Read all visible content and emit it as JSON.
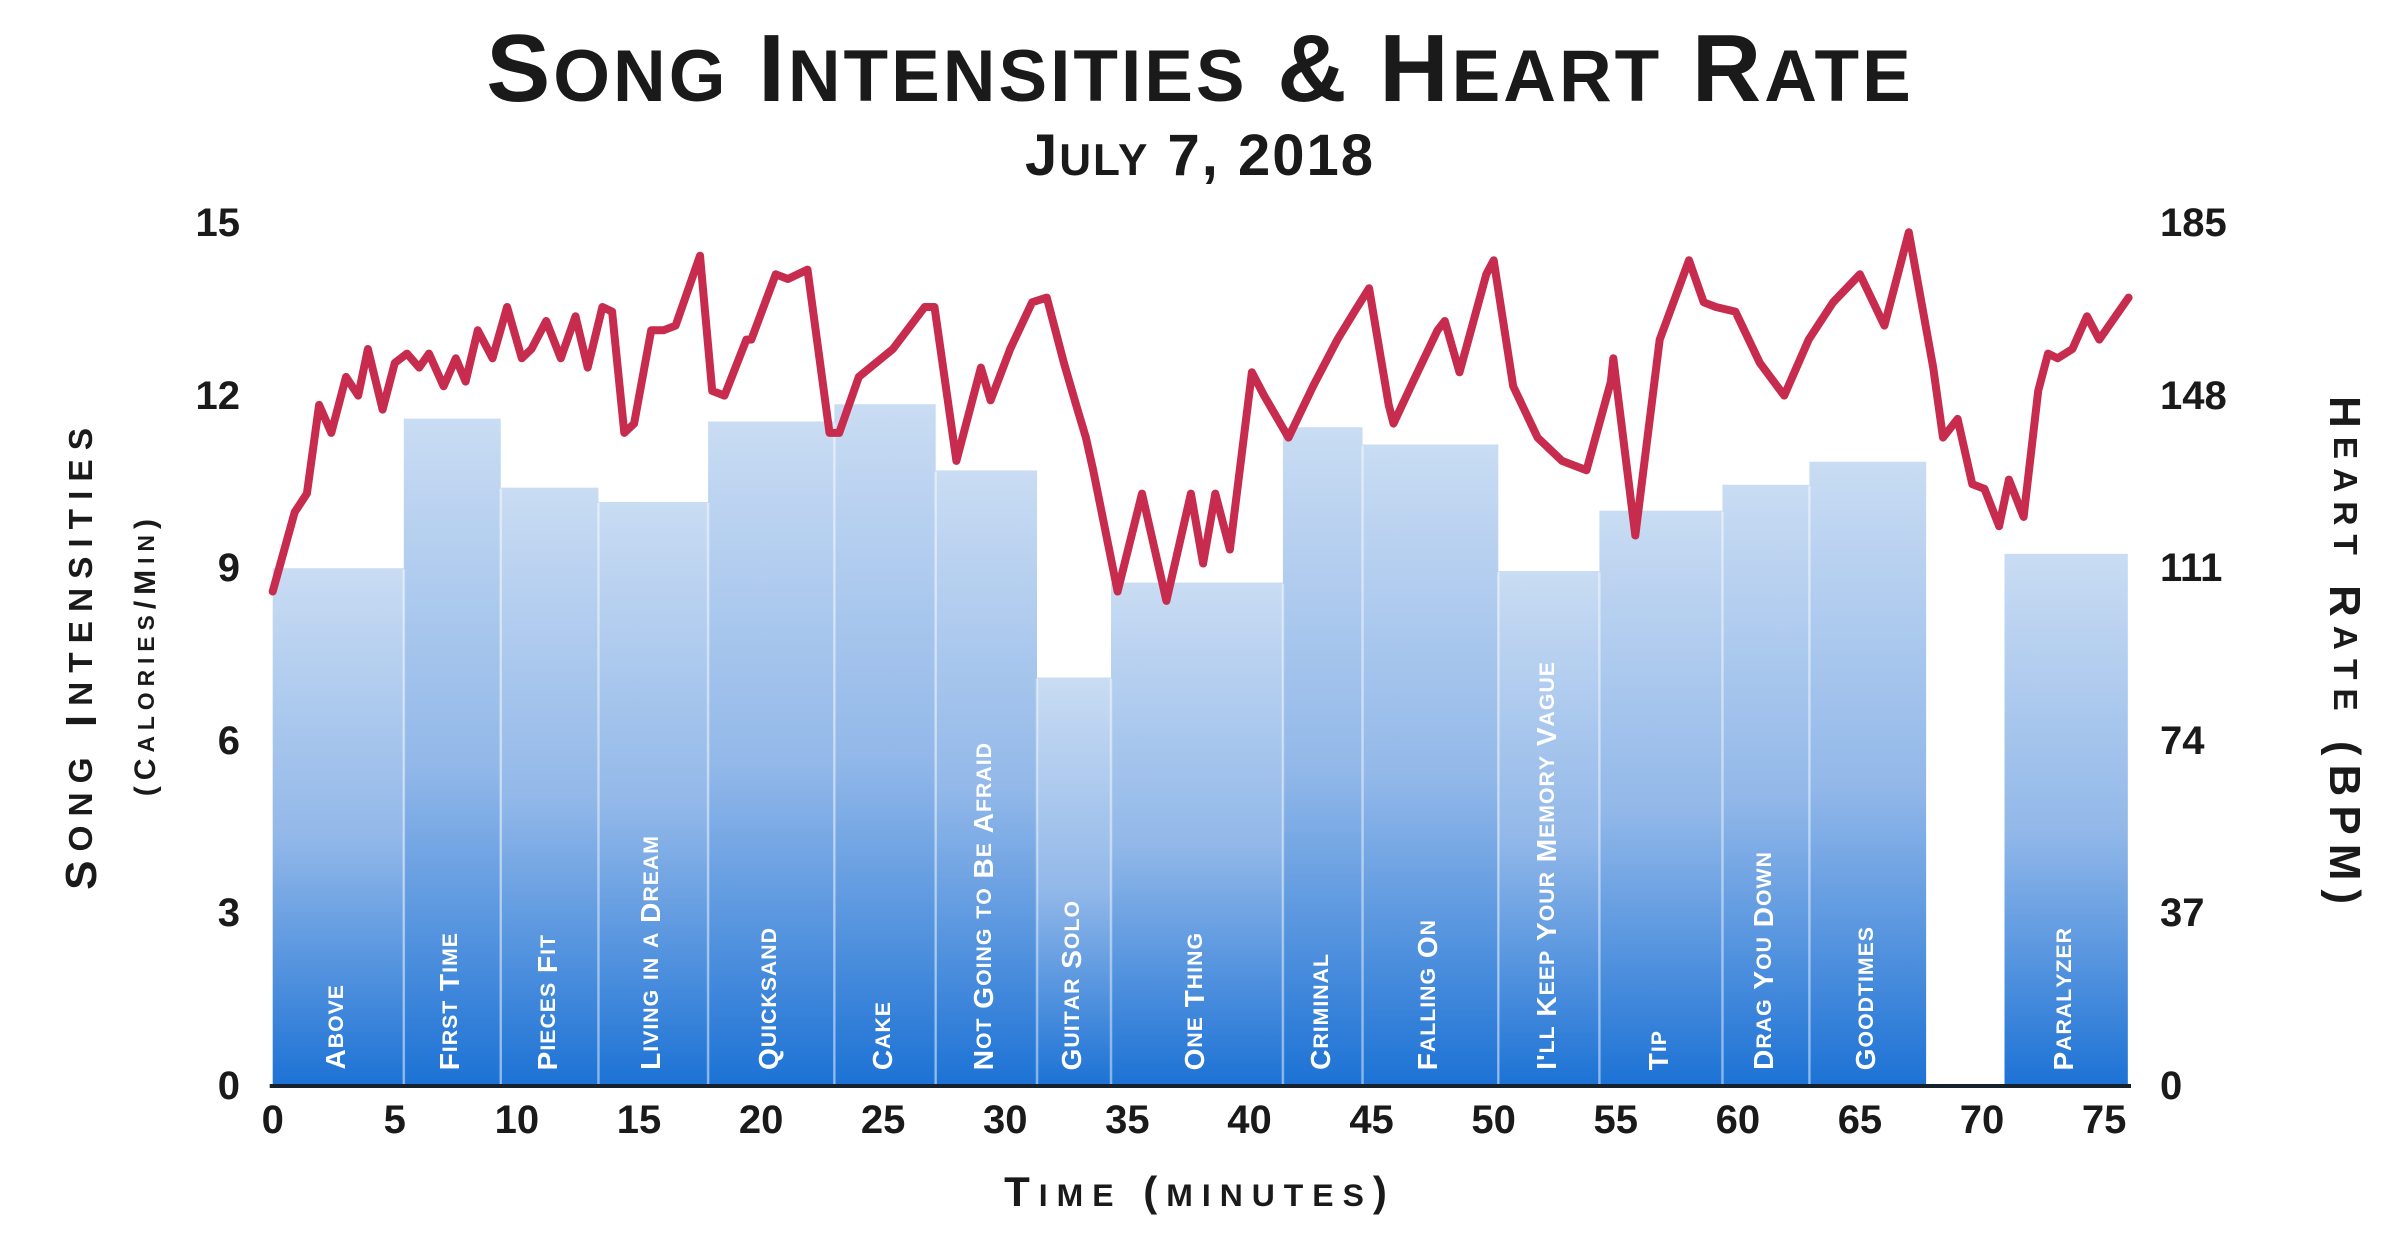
{
  "title": "Song Intensities & Heart Rate",
  "subtitle": "July 7, 2018",
  "colors": {
    "bar_gradient_top": "#C9DCF3",
    "bar_gradient_mid": "#92B8E9",
    "bar_gradient_bottom": "#1C72D5",
    "bar_separator": "rgba(255,255,255,0.45)",
    "heart_line": "#C72C4E",
    "axis_line": "#16212E",
    "text": "#1A1A1A",
    "bar_label_text": "#FFFFFF"
  },
  "chart_data": {
    "type": "combo-bar-line",
    "title": "Song Intensities & Heart Rate",
    "subtitle": "July 7, 2018",
    "grid": false,
    "legend": "none",
    "x": {
      "title": "Time (minutes)",
      "range": [
        0,
        76.1
      ],
      "ticks": [
        0,
        5,
        10,
        15,
        20,
        25,
        30,
        35,
        40,
        45,
        50,
        55,
        60,
        65,
        70,
        75
      ]
    },
    "y_left": {
      "title": "Song Intensities",
      "subtitle": "(Calories/Min)",
      "range": [
        0,
        15
      ],
      "ticks": [
        0,
        3,
        6,
        9,
        12,
        15
      ]
    },
    "y_right": {
      "title": "Heart Rate (BPM)",
      "range": [
        0,
        185
      ],
      "ticks": [
        0,
        37,
        74,
        111,
        148,
        185
      ]
    },
    "bars": {
      "series_name": "Song Intensities",
      "unit": "Calories/Min",
      "items": [
        {
          "label": "Above",
          "start": 0,
          "end": 5.37,
          "value": 9.0
        },
        {
          "label": "First Time",
          "start": 5.37,
          "end": 9.34,
          "value": 11.6
        },
        {
          "label": "Pieces Fit",
          "start": 9.34,
          "end": 13.34,
          "value": 10.4
        },
        {
          "label": "Living in a Dream",
          "start": 13.34,
          "end": 17.83,
          "value": 10.15
        },
        {
          "label": "Quicksand",
          "start": 17.83,
          "end": 23.0,
          "value": 11.55
        },
        {
          "label": "Cake",
          "start": 23.0,
          "end": 27.15,
          "value": 11.85
        },
        {
          "label": "Not Going to Be Afraid",
          "start": 27.15,
          "end": 31.3,
          "value": 10.7
        },
        {
          "label": "Guitar Solo",
          "start": 31.3,
          "end": 34.33,
          "value": 7.1
        },
        {
          "label": "One Thing",
          "start": 34.33,
          "end": 41.37,
          "value": 8.75
        },
        {
          "label": "Criminal",
          "start": 41.37,
          "end": 44.63,
          "value": 11.45
        },
        {
          "label": "Falling On",
          "start": 44.63,
          "end": 50.19,
          "value": 11.15
        },
        {
          "label": "I'll Keep Your Memory Vague",
          "start": 50.19,
          "end": 54.33,
          "value": 8.95
        },
        {
          "label": "Tip",
          "start": 54.33,
          "end": 59.37,
          "value": 10.0
        },
        {
          "label": "Drag You Down",
          "start": 59.37,
          "end": 62.93,
          "value": 10.45
        },
        {
          "label": "Goodtimes",
          "start": 62.93,
          "end": 67.71,
          "value": 10.85
        },
        {
          "label": "Paralyzer",
          "start": 70.92,
          "end": 75.97,
          "value": 9.25
        }
      ]
    },
    "line": {
      "series_name": "Heart Rate",
      "unit": "BPM",
      "points": [
        [
          0,
          106
        ],
        [
          0.9,
          123
        ],
        [
          1.4,
          127
        ],
        [
          1.9,
          146
        ],
        [
          2.4,
          140
        ],
        [
          3.0,
          152
        ],
        [
          3.5,
          148
        ],
        [
          3.9,
          158
        ],
        [
          4.5,
          145
        ],
        [
          5.0,
          155
        ],
        [
          5.5,
          157
        ],
        [
          6.0,
          154
        ],
        [
          6.4,
          157
        ],
        [
          7.0,
          150
        ],
        [
          7.5,
          156
        ],
        [
          7.9,
          151
        ],
        [
          8.4,
          162
        ],
        [
          9.0,
          156
        ],
        [
          9.6,
          167
        ],
        [
          10.2,
          156
        ],
        [
          10.6,
          158
        ],
        [
          11.2,
          164
        ],
        [
          11.8,
          156
        ],
        [
          12.4,
          165
        ],
        [
          12.9,
          154
        ],
        [
          13.5,
          167
        ],
        [
          13.9,
          166
        ],
        [
          14.4,
          140
        ],
        [
          14.8,
          142
        ],
        [
          15.5,
          162
        ],
        [
          16.0,
          162
        ],
        [
          16.5,
          163
        ],
        [
          17.5,
          178
        ],
        [
          18.0,
          149
        ],
        [
          18.5,
          148
        ],
        [
          19.4,
          160
        ],
        [
          19.6,
          160
        ],
        [
          20.6,
          174
        ],
        [
          21.1,
          173
        ],
        [
          21.9,
          175
        ],
        [
          22.8,
          140
        ],
        [
          23.2,
          140
        ],
        [
          24.0,
          152
        ],
        [
          25.4,
          158
        ],
        [
          26.7,
          167
        ],
        [
          27.1,
          167
        ],
        [
          28.0,
          134
        ],
        [
          29.0,
          154
        ],
        [
          29.4,
          147
        ],
        [
          30.2,
          158
        ],
        [
          31.1,
          168
        ],
        [
          31.7,
          169
        ],
        [
          32.4,
          155
        ],
        [
          32.9,
          146
        ],
        [
          33.3,
          139
        ],
        [
          33.6,
          132
        ],
        [
          34.6,
          106
        ],
        [
          35.6,
          127
        ],
        [
          36.6,
          104
        ],
        [
          37.6,
          127
        ],
        [
          38.1,
          112
        ],
        [
          38.6,
          127
        ],
        [
          39.2,
          115
        ],
        [
          40.1,
          153
        ],
        [
          40.6,
          148
        ],
        [
          41.6,
          139
        ],
        [
          42.6,
          150
        ],
        [
          43.6,
          160
        ],
        [
          44.3,
          166
        ],
        [
          44.9,
          171
        ],
        [
          45.7,
          146
        ],
        [
          45.9,
          142
        ],
        [
          46.7,
          151
        ],
        [
          47.7,
          162
        ],
        [
          48.0,
          164
        ],
        [
          48.6,
          153
        ],
        [
          49.7,
          174
        ],
        [
          50.0,
          177
        ],
        [
          50.8,
          150
        ],
        [
          51.8,
          139
        ],
        [
          52.8,
          134
        ],
        [
          53.8,
          132
        ],
        [
          54.8,
          151
        ],
        [
          54.9,
          156
        ],
        [
          55.8,
          118
        ],
        [
          56.8,
          160
        ],
        [
          58.0,
          177
        ],
        [
          58.6,
          168
        ],
        [
          59.1,
          167
        ],
        [
          59.9,
          166
        ],
        [
          60.9,
          155
        ],
        [
          61.9,
          148
        ],
        [
          62.9,
          160
        ],
        [
          63.9,
          168
        ],
        [
          65.0,
          174
        ],
        [
          66.0,
          163
        ],
        [
          67.0,
          183
        ],
        [
          68.0,
          154
        ],
        [
          68.4,
          139
        ],
        [
          69.0,
          143
        ],
        [
          69.6,
          129
        ],
        [
          70.1,
          128
        ],
        [
          70.7,
          120
        ],
        [
          71.1,
          130
        ],
        [
          71.7,
          122
        ],
        [
          72.3,
          149
        ],
        [
          72.7,
          157
        ],
        [
          73.1,
          156
        ],
        [
          73.7,
          158
        ],
        [
          74.3,
          165
        ],
        [
          74.8,
          160
        ],
        [
          75.2,
          163
        ],
        [
          76.0,
          169
        ]
      ]
    }
  }
}
